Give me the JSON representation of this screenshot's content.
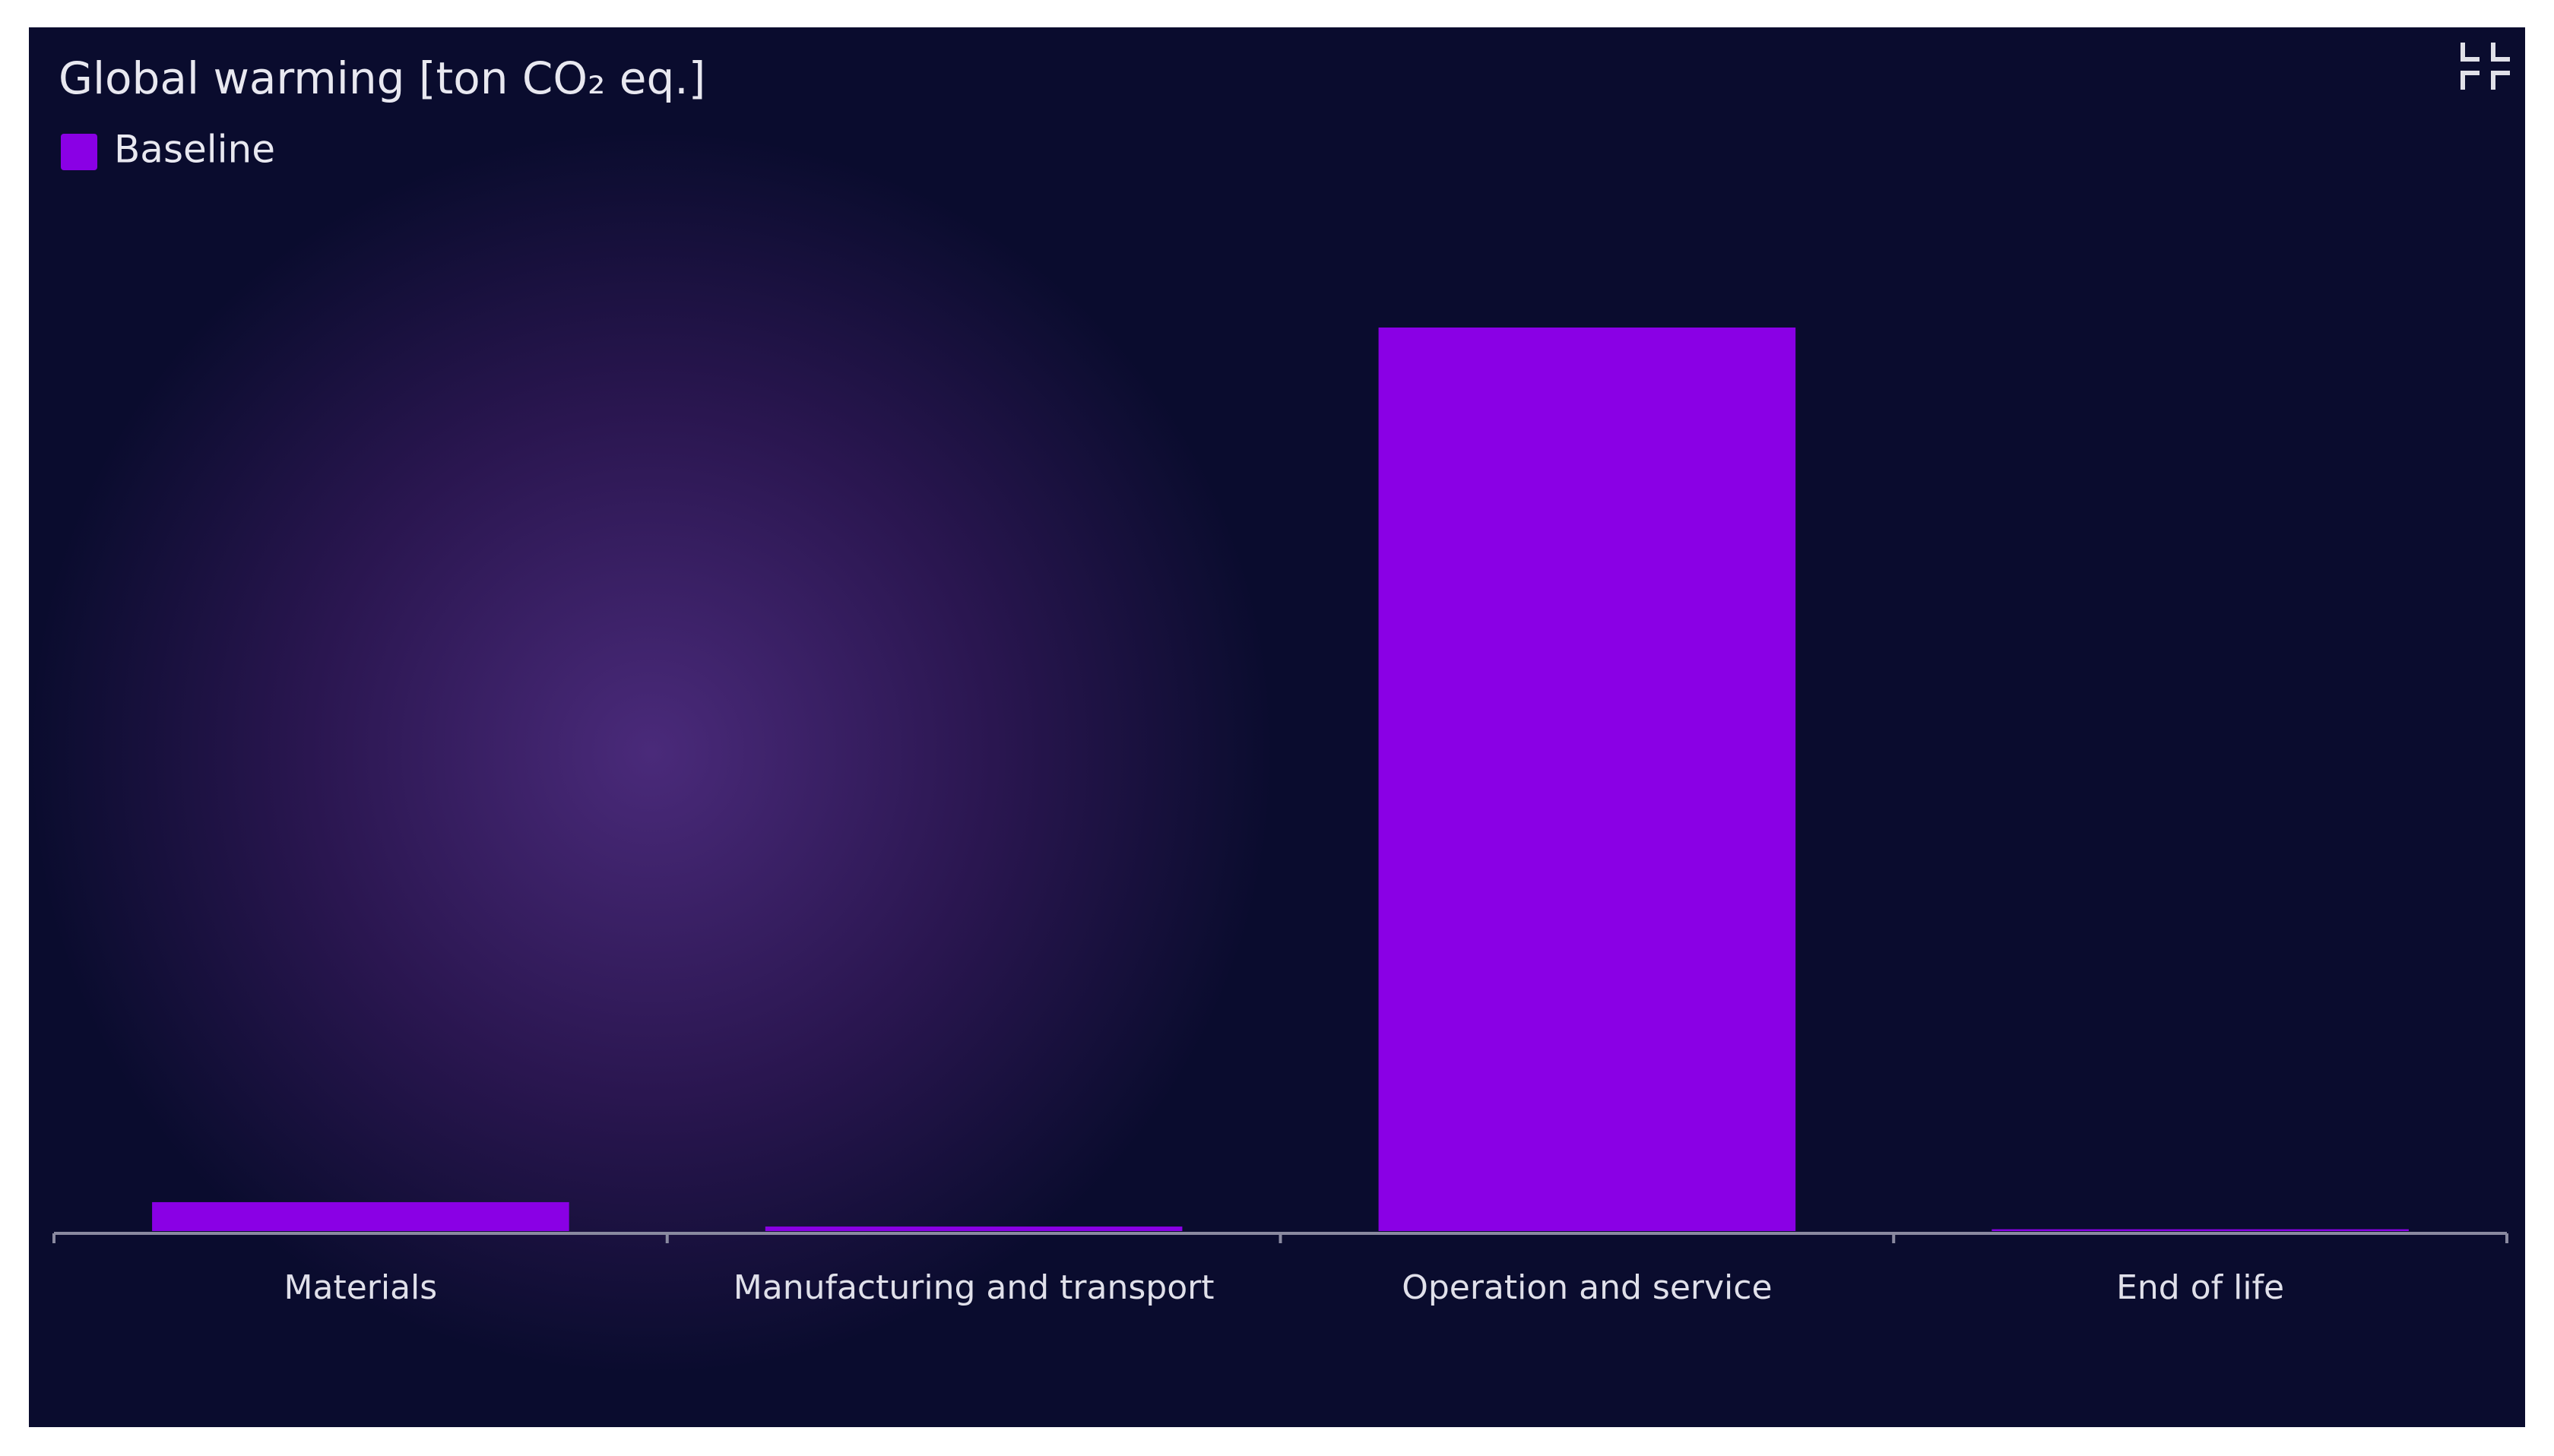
{
  "chart_data": {
    "type": "bar",
    "title": "Global warming [ton CO₂ eq.]",
    "categories": [
      "Materials",
      "Manufacturing and transport",
      "Operation and service",
      "End of life"
    ],
    "series": [
      {
        "name": "Baseline",
        "color": "#8a00e5",
        "values": [
          3.2,
          0.5,
          100,
          0.2
        ]
      }
    ]
  }
}
